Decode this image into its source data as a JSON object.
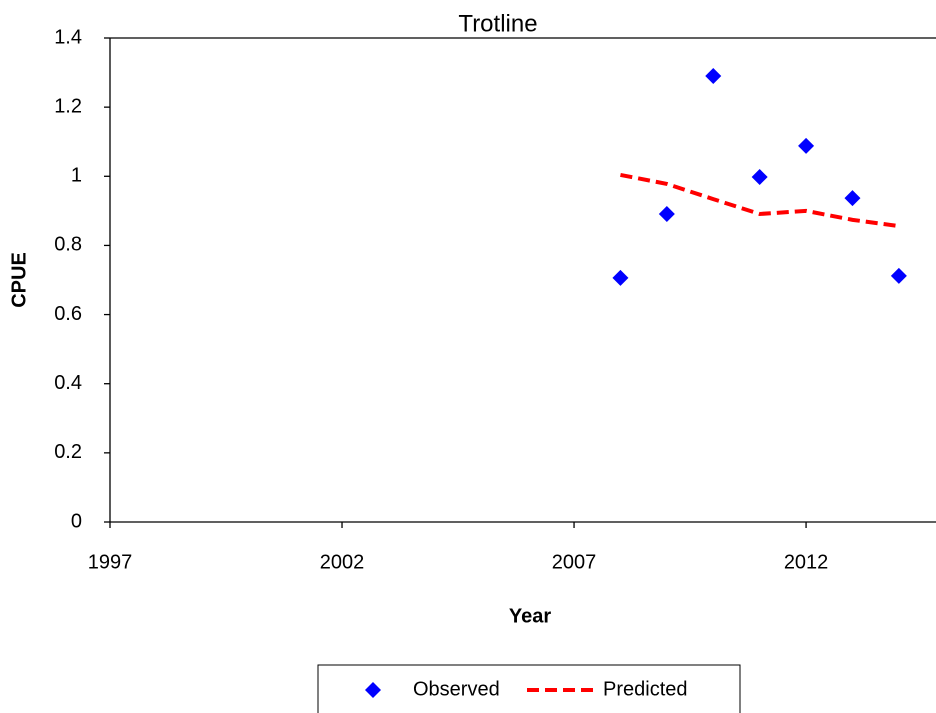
{
  "chart_data": {
    "type": "scatter-line",
    "title": "Trotline",
    "x_label": "Year",
    "y_label": "CPUE",
    "x": [
      2008,
      2009,
      2010,
      2011,
      2012,
      2013,
      2014
    ],
    "series": [
      {
        "name": "Observed",
        "color": "#0000ff",
        "style": "marker",
        "values": [
          0.706,
          0.891,
          1.29,
          0.998,
          1.088,
          0.937,
          0.712
        ]
      },
      {
        "name": "Predicted",
        "color": "#ff0000",
        "style": "dashed",
        "values": [
          1.004,
          0.978,
          0.934,
          0.891,
          0.9,
          0.874,
          0.856
        ]
      }
    ],
    "xlim": [
      1997,
      2014.8
    ],
    "xticks": [
      1997,
      2002,
      2007,
      2012
    ],
    "ylim": [
      0,
      1.4
    ],
    "yticks": [
      0,
      0.2,
      0.4,
      0.6,
      0.8,
      1,
      1.2,
      1.4
    ],
    "grid": false,
    "legend": "bottom"
  }
}
